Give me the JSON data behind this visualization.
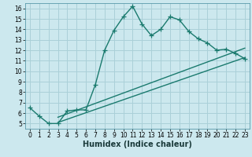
{
  "title": "",
  "xlabel": "Humidex (Indice chaleur)",
  "bg_color": "#cce8ee",
  "line_color": "#1a7a6e",
  "grid_color": "#aad0d8",
  "xlim": [
    -0.5,
    23.5
  ],
  "ylim": [
    4.5,
    16.5
  ],
  "xticks": [
    0,
    1,
    2,
    3,
    4,
    5,
    6,
    7,
    8,
    9,
    10,
    11,
    12,
    13,
    14,
    15,
    16,
    17,
    18,
    19,
    20,
    21,
    22,
    23
  ],
  "yticks": [
    5,
    6,
    7,
    8,
    9,
    10,
    11,
    12,
    13,
    14,
    15,
    16
  ],
  "main_line_x": [
    0,
    1,
    2,
    3,
    4,
    5,
    6,
    7,
    8,
    9,
    10,
    11,
    12,
    13,
    14,
    15,
    16,
    17,
    18,
    19,
    20,
    21,
    22,
    23
  ],
  "main_line_y": [
    6.5,
    5.7,
    5.0,
    5.0,
    6.2,
    6.3,
    6.3,
    8.7,
    12.0,
    13.9,
    15.2,
    16.2,
    14.5,
    13.4,
    14.0,
    15.2,
    14.9,
    13.8,
    13.1,
    12.7,
    12.0,
    12.1,
    11.7,
    11.2
  ],
  "line2_x": [
    3,
    23
  ],
  "line2_y": [
    5.1,
    11.3
  ],
  "line3_x": [
    3,
    23
  ],
  "line3_y": [
    5.6,
    12.2
  ],
  "marker": "+",
  "markersize": 4,
  "linewidth": 1.0,
  "tick_fontsize": 5.5,
  "xlabel_fontsize": 7.0
}
